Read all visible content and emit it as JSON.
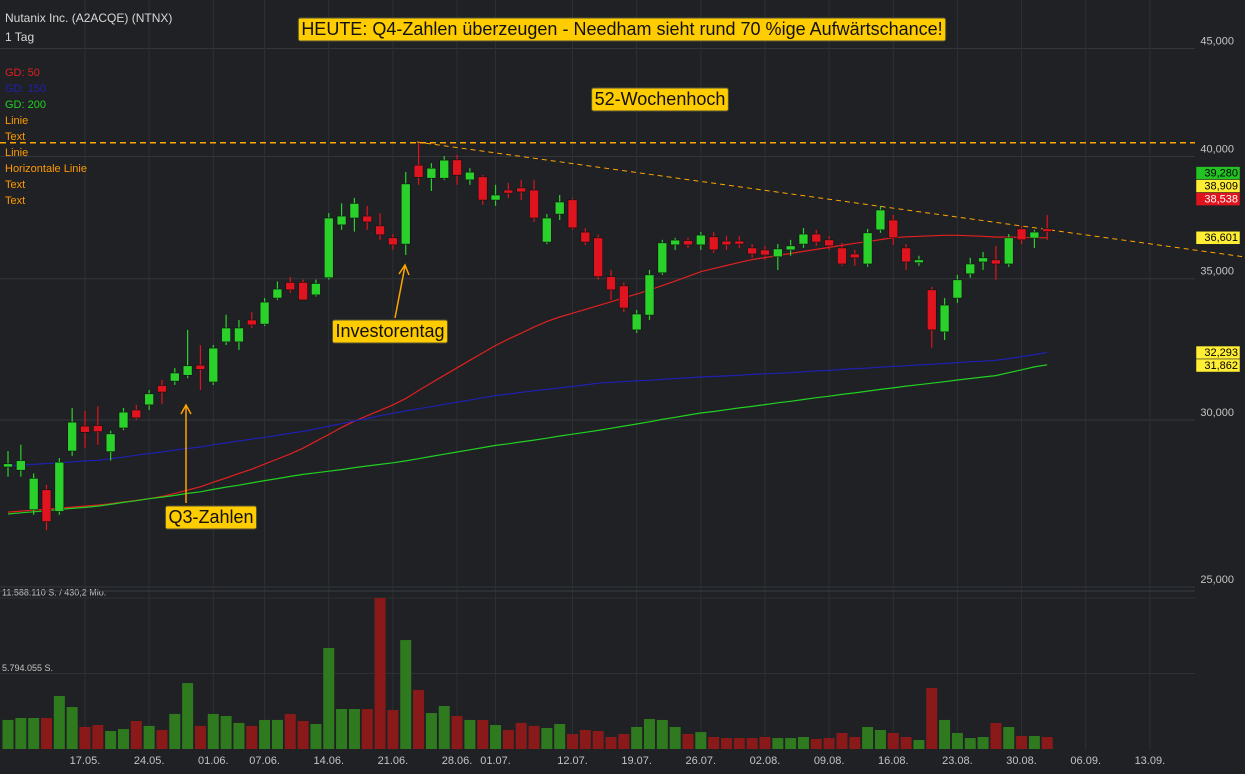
{
  "chart_data": {
    "type": "candlestick",
    "title": "Nutanix Inc. (A2ACQE) (NTNX)",
    "subtitle": "1 Tag",
    "log_scale": true,
    "grid": true,
    "ylim": [
      24900,
      47000
    ],
    "yticks": [
      {
        "value": 45000,
        "label": "45,000"
      },
      {
        "value": 40000,
        "label": "40,000"
      },
      {
        "value": 35000,
        "label": "35,000"
      },
      {
        "value": 30000,
        "label": "30,000"
      },
      {
        "value": 25000,
        "label": "25,000"
      }
    ],
    "up_color": "#2bd12b",
    "down_color": "#e0141e",
    "categories": [
      null,
      null,
      null,
      null,
      null,
      null,
      "17.05.",
      null,
      null,
      null,
      null,
      "24.05.",
      null,
      null,
      null,
      null,
      "01.06.",
      null,
      null,
      null,
      "07.06.",
      null,
      null,
      null,
      null,
      "14.06.",
      null,
      null,
      null,
      null,
      "21.06.",
      null,
      null,
      null,
      null,
      "28.06.",
      null,
      null,
      "01.07.",
      null,
      null,
      null,
      null,
      null,
      "12.07.",
      null,
      null,
      null,
      null,
      "19.07.",
      null,
      null,
      null,
      null,
      "26.07.",
      null,
      null,
      null,
      null,
      "02.08.",
      null,
      null,
      null,
      null,
      "09.08.",
      null,
      null,
      null,
      null,
      "16.08.",
      null,
      null,
      null,
      null,
      "23.08.",
      null,
      null,
      null,
      null,
      "30.08.",
      null,
      null,
      null,
      null,
      "06.09.",
      null,
      null,
      null,
      null,
      "13.09."
    ],
    "open": [
      28500,
      28400,
      27200,
      27800,
      27150,
      29000,
      29800,
      29820,
      28980,
      29740,
      30330,
      30500,
      31150,
      31300,
      31500,
      31850,
      31270,
      32670,
      32670,
      33460,
      33310,
      34270,
      34860,
      34860,
      34390,
      35040,
      37120,
      37400,
      37480,
      37080,
      36600,
      36350,
      39620,
      39060,
      39060,
      39850,
      38990,
      39120,
      38140,
      38560,
      38650,
      38560,
      36430,
      37560,
      38150,
      36830,
      36600,
      35080,
      34730,
      33100,
      33640,
      35230,
      36320,
      36490,
      36320,
      36640,
      36470,
      36470,
      36200,
      36120,
      35850,
      36120,
      36350,
      36750,
      36520,
      36200,
      35960,
      35570,
      36920,
      37320,
      36200,
      35620,
      34580,
      33030,
      34270,
      35190,
      35650,
      35730,
      35570,
      36960,
      36590,
      36960,
      null,
      null,
      null,
      null,
      null,
      null,
      null,
      null
    ],
    "high": [
      29000,
      29200,
      28300,
      27950,
      28780,
      30400,
      30300,
      30450,
      29650,
      30400,
      30500,
      31000,
      31340,
      31750,
      33100,
      32550,
      32560,
      33650,
      33460,
      33750,
      34270,
      34900,
      35070,
      34970,
      34970,
      37600,
      38000,
      38230,
      37900,
      37600,
      36750,
      39330,
      40600,
      39710,
      40020,
      40070,
      39490,
      39200,
      38780,
      38860,
      38990,
      38990,
      37560,
      38350,
      38230,
      36990,
      36720,
      35340,
      34860,
      33830,
      35340,
      36520,
      36600,
      36600,
      36830,
      36830,
      36670,
      36670,
      36350,
      36280,
      36350,
      36520,
      37000,
      36920,
      36670,
      36400,
      36120,
      36960,
      37900,
      37520,
      36350,
      35890,
      34690,
      34270,
      35150,
      35810,
      36040,
      36280,
      36750,
      37080,
      36920,
      37520,
      null,
      null,
      null,
      null,
      null,
      null,
      null,
      null
    ],
    "low": [
      28200,
      28200,
      27050,
      26600,
      27050,
      28850,
      29100,
      29200,
      28700,
      29670,
      30000,
      30330,
      30530,
      31170,
      31400,
      31000,
      31170,
      32560,
      32380,
      33170,
      33240,
      34200,
      34470,
      34200,
      34330,
      34970,
      36920,
      36850,
      36920,
      36520,
      36120,
      35920,
      38780,
      38520,
      38990,
      38780,
      38780,
      37940,
      37900,
      38230,
      38140,
      37240,
      36350,
      37320,
      36920,
      36320,
      34970,
      34200,
      33750,
      32990,
      33460,
      35150,
      36120,
      36200,
      36120,
      36000,
      36120,
      36200,
      35810,
      35730,
      35340,
      35890,
      36200,
      36280,
      36120,
      35500,
      35500,
      35460,
      36800,
      36320,
      35340,
      35500,
      32460,
      32740,
      34090,
      35040,
      35340,
      34960,
      35460,
      36350,
      36200,
      36520,
      null,
      null,
      null,
      null,
      null,
      null,
      null,
      null
    ],
    "close": [
      28600,
      28700,
      28150,
      26850,
      28650,
      29930,
      29600,
      29620,
      29550,
      30260,
      30070,
      30870,
      30930,
      31580,
      31830,
      31700,
      32450,
      33170,
      33170,
      33280,
      34120,
      34610,
      34580,
      34200,
      34820,
      37400,
      37480,
      38000,
      37240,
      36720,
      36320,
      38820,
      39100,
      39490,
      39840,
      39190,
      39320,
      38140,
      38350,
      38430,
      38480,
      37400,
      37400,
      38060,
      37000,
      36430,
      35080,
      34580,
      33900,
      33680,
      35150,
      36400,
      36510,
      36320,
      36710,
      36120,
      36320,
      36350,
      35960,
      35920,
      36160,
      36280,
      36750,
      36430,
      36280,
      35570,
      35810,
      36800,
      37730,
      36600,
      35650,
      35730,
      33100,
      34010,
      34960,
      35570,
      35810,
      35570,
      36600,
      36520,
      36830,
      36850,
      null,
      null,
      null,
      null,
      null,
      null,
      null,
      null
    ],
    "series": [
      {
        "name": "GD: 50",
        "color": "#e02020",
        "values": [
          27130,
          27160,
          27190,
          27220,
          27250,
          27280,
          27310,
          27340,
          27380,
          27430,
          27480,
          27530,
          27600,
          27690,
          27790,
          27890,
          28030,
          28160,
          28300,
          28430,
          28590,
          28750,
          28910,
          29090,
          29310,
          29530,
          29760,
          29960,
          30140,
          30320,
          30500,
          30710,
          30980,
          31240,
          31500,
          31760,
          32020,
          32280,
          32540,
          32770,
          32980,
          33200,
          33410,
          33570,
          33710,
          33850,
          33990,
          34130,
          34280,
          34420,
          34570,
          34740,
          34910,
          35090,
          35270,
          35390,
          35510,
          35630,
          35740,
          35820,
          35900,
          35980,
          36060,
          36140,
          36220,
          36300,
          36380,
          36450,
          36530,
          36600,
          36640,
          36660,
          36680,
          36700,
          36700,
          36680,
          36660,
          36630,
          36630,
          36620,
          36610,
          36601,
          null,
          null,
          null,
          null,
          null,
          null,
          null,
          null
        ]
      },
      {
        "name": "GD: 150",
        "color": "#2020b0",
        "values": [
          28530,
          28560,
          28580,
          28610,
          28630,
          28660,
          28690,
          28710,
          28760,
          28810,
          28870,
          28920,
          28970,
          29030,
          29080,
          29130,
          29200,
          29260,
          29320,
          29380,
          29440,
          29500,
          29570,
          29630,
          29710,
          29800,
          29880,
          29970,
          30050,
          30140,
          30220,
          30300,
          30370,
          30440,
          30520,
          30590,
          30660,
          30740,
          30810,
          30860,
          30920,
          30970,
          31020,
          31070,
          31120,
          31170,
          31230,
          31260,
          31280,
          31310,
          31330,
          31360,
          31390,
          31410,
          31440,
          31460,
          31480,
          31500,
          31530,
          31550,
          31570,
          31590,
          31620,
          31650,
          31670,
          31700,
          31730,
          31750,
          31780,
          31810,
          31830,
          31860,
          31880,
          31910,
          31940,
          31970,
          31990,
          32020,
          32080,
          32150,
          32220,
          32293,
          null,
          null,
          null,
          null,
          null,
          null,
          null,
          null
        ]
      },
      {
        "name": "GD: 200",
        "color": "#22d022",
        "values": [
          27075,
          27110,
          27140,
          27170,
          27210,
          27240,
          27270,
          27310,
          27360,
          27420,
          27470,
          27530,
          27580,
          27630,
          27690,
          27740,
          27810,
          27880,
          27940,
          28010,
          28080,
          28140,
          28210,
          28270,
          28320,
          28370,
          28420,
          28480,
          28530,
          28580,
          28630,
          28690,
          28760,
          28830,
          28900,
          28970,
          29040,
          29110,
          29180,
          29230,
          29290,
          29350,
          29410,
          29480,
          29540,
          29600,
          29660,
          29730,
          29800,
          29870,
          29940,
          30020,
          30090,
          30160,
          30230,
          30280,
          30340,
          30400,
          30450,
          30510,
          30570,
          30620,
          30680,
          30740,
          30790,
          30850,
          30900,
          30960,
          31020,
          31070,
          31130,
          31180,
          31230,
          31280,
          31340,
          31390,
          31440,
          31490,
          31590,
          31690,
          31790,
          31862,
          null,
          null,
          null,
          null,
          null,
          null,
          null,
          null
        ]
      }
    ],
    "tools": [
      "Linie",
      "Text",
      "Linie",
      "Horizontale Linie",
      "Text",
      "Text"
    ],
    "tools_color": "#ff9900",
    "horizontal_line": {
      "value": 40600,
      "color": "#ffa500"
    },
    "price_labels": [
      {
        "value": 39280,
        "label": "39,280",
        "color": "#22c322"
      },
      {
        "value": 38909,
        "label": "38,909",
        "color": "#ffee33"
      },
      {
        "value": 38538,
        "label": "38,538",
        "color": "#e0141e"
      },
      {
        "value": 36601,
        "label": "36,601",
        "color": "#ffee33"
      },
      {
        "value": 32293,
        "label": "32,293",
        "color": "#ffee33"
      },
      {
        "value": 31862,
        "label": "31,862",
        "color": "#ffee33"
      }
    ],
    "annotations": [
      "HEUTE: Q4-Zahlen überzeugen - Needham sieht rund 70 %ige Aufwärtschance!",
      "52-Wochenhoch",
      "Investorentag",
      "Q3-Zahlen"
    ],
    "volume": {
      "ylim": [
        0,
        11588110
      ],
      "yticks": [
        {
          "value": 11588110,
          "label": "11.588.110 S. / 430,2 Mio."
        },
        {
          "value": 5794055,
          "label": "5.794.055 S."
        }
      ],
      "up_color": "#2f7a1f",
      "down_color": "#8a1a1a",
      "values": [
        2230000,
        2380000,
        2380000,
        2380000,
        4070000,
        3220000,
        1690000,
        1840000,
        1380000,
        1530000,
        2150000,
        1770000,
        1460000,
        2690000,
        5060000,
        1770000,
        2690000,
        2530000,
        2000000,
        1770000,
        2230000,
        2230000,
        2690000,
        2150000,
        1920000,
        7750000,
        3070000,
        3070000,
        3070000,
        11588110,
        2990000,
        8360000,
        4530000,
        2760000,
        3300000,
        2530000,
        2230000,
        2230000,
        1840000,
        1460000,
        2000000,
        1770000,
        1610000,
        1920000,
        1150000,
        1460000,
        1380000,
        920000,
        1150000,
        1690000,
        2300000,
        2230000,
        1690000,
        1150000,
        1300000,
        920000,
        840000,
        840000,
        840000,
        920000,
        840000,
        840000,
        920000,
        770000,
        840000,
        1230000,
        920000,
        1690000,
        1460000,
        1230000,
        920000,
        690000,
        4680000,
        2230000,
        1230000,
        840000,
        920000,
        2000000,
        1690000,
        1000000,
        1000000,
        920000,
        null,
        null,
        null,
        null,
        null,
        null,
        null,
        null
      ]
    }
  }
}
